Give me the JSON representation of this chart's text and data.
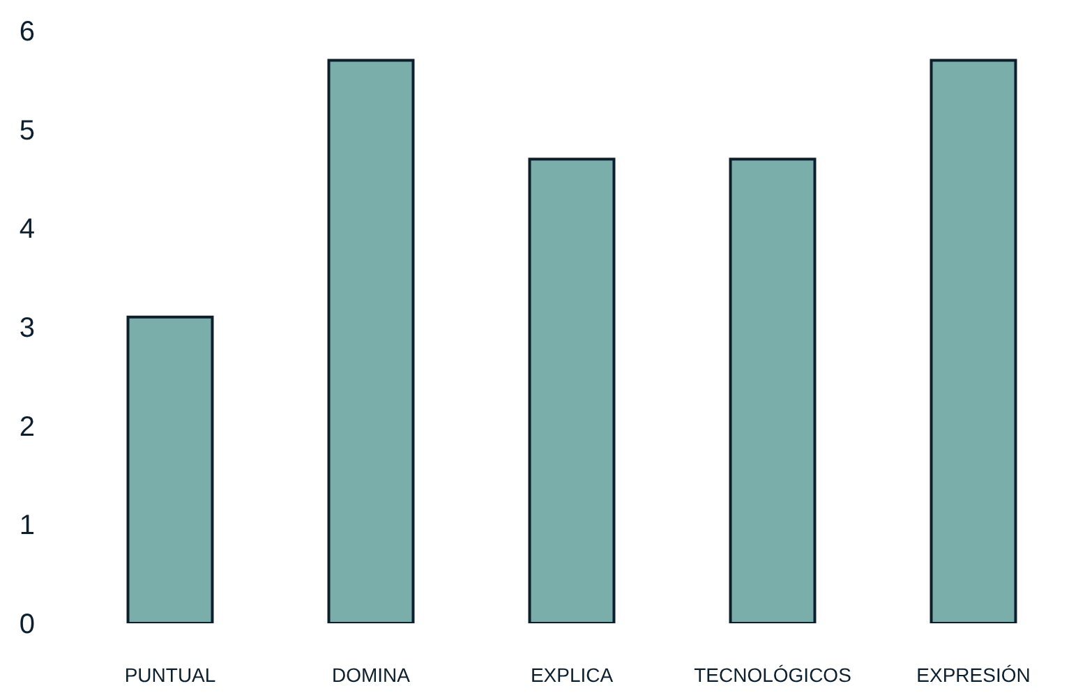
{
  "chart_data": {
    "type": "bar",
    "categories": [
      "PUNTUAL",
      "DOMINA",
      "EXPLICA",
      "TECNOLÓGICOS",
      "EXPRESIÓN"
    ],
    "values": [
      3.1,
      5.7,
      4.7,
      4.7,
      5.7
    ],
    "color": "#7aaeaa",
    "ylim": [
      0,
      6
    ],
    "yticks": [
      0,
      1,
      2,
      3,
      4,
      5,
      6
    ],
    "grid": false
  }
}
